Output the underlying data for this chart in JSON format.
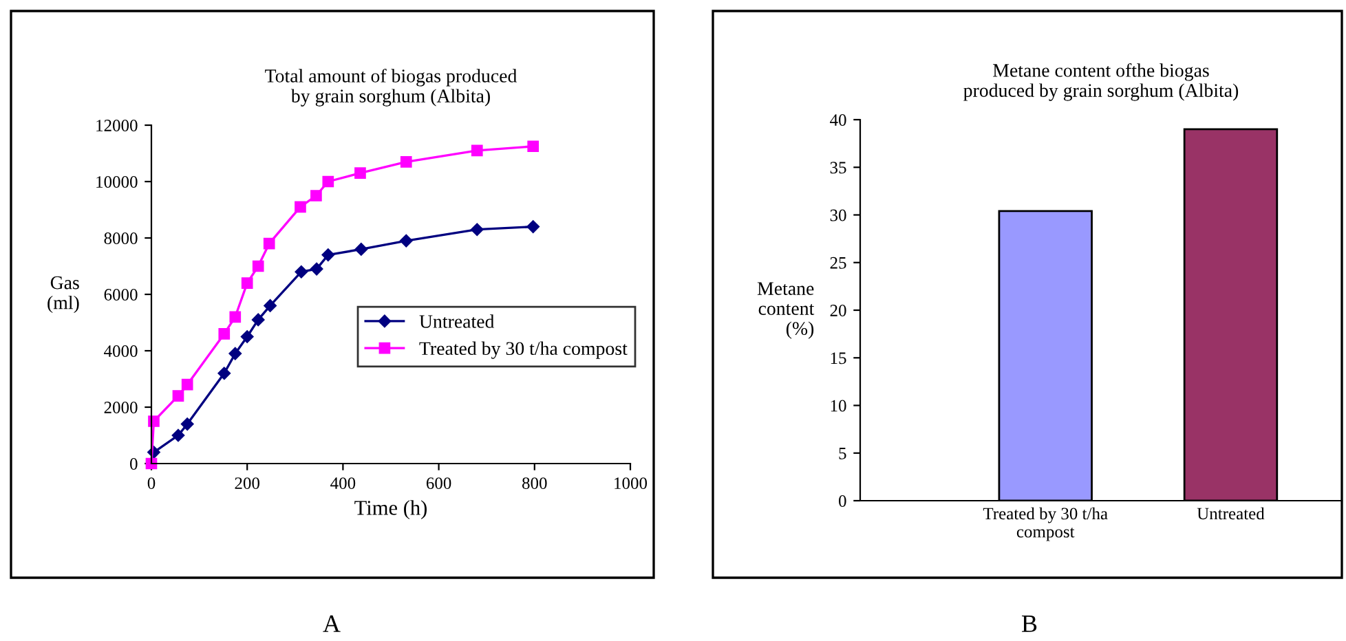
{
  "chart_data": [
    {
      "type": "line",
      "title": "Total amount of biogas produced\nby grain sorghum (Albita)",
      "xlabel": "Time (h)",
      "ylabel": "Gas\n(ml)",
      "xlim": [
        0,
        1000
      ],
      "xticks": [
        0,
        200,
        400,
        600,
        800,
        1000
      ],
      "ylim": [
        0,
        12000
      ],
      "yticks": [
        0,
        2000,
        4000,
        6000,
        8000,
        10000,
        12000
      ],
      "grid": false,
      "legend": "right",
      "annotations": [
        "A"
      ],
      "series": [
        {
          "name": "Untreated",
          "color": "#000080",
          "marker": "diamond",
          "x": [
            5,
            56,
            75,
            152,
            175,
            200,
            223,
            248,
            313,
            345,
            369,
            438,
            532,
            680,
            797
          ],
          "values": [
            400,
            1000,
            1400,
            3200,
            3900,
            4500,
            5100,
            5600,
            6800,
            6900,
            7400,
            7600,
            7900,
            8300,
            8400
          ]
        },
        {
          "name": "Treated by 30 t/ha compost",
          "color": "#ff00ff",
          "marker": "square",
          "x": [
            0,
            5,
            56,
            75,
            152,
            175,
            200,
            223,
            246,
            311,
            344,
            369,
            436,
            532,
            680,
            797
          ],
          "values": [
            0,
            1500,
            2400,
            2800,
            4600,
            5200,
            6400,
            7000,
            7800,
            9100,
            9500,
            10000,
            10300,
            10700,
            11100,
            11250
          ]
        }
      ]
    },
    {
      "type": "bar",
      "title": "Metane content ofthe biogas\nproduced by grain sorghum (Albita)",
      "ylabel": "Metane\ncontent\n(%)",
      "categories": [
        "Treated by 30 t/ha\ncompost",
        "Untreated"
      ],
      "values": [
        30.4,
        39.0
      ],
      "colors": [
        "#9999ff",
        "#993366"
      ],
      "ylim": [
        0,
        40
      ],
      "yticks": [
        0,
        5,
        10,
        15,
        20,
        25,
        30,
        35,
        40
      ],
      "grid": false,
      "annotations": [
        "B"
      ]
    }
  ]
}
